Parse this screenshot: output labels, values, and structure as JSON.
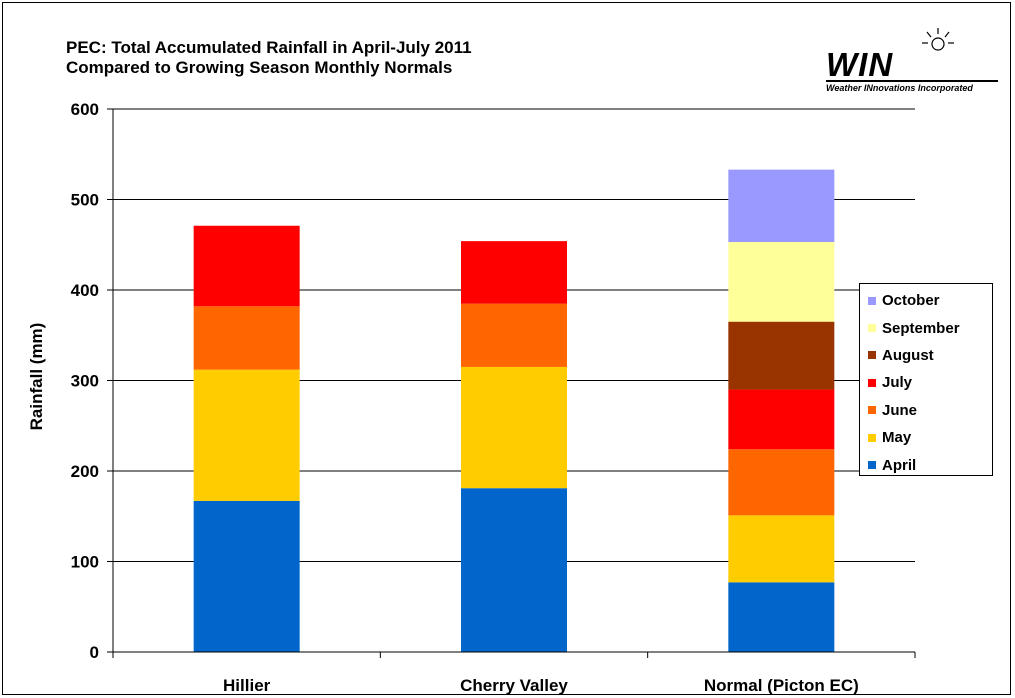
{
  "title_line1": "PEC: Total Accumulated Rainfall in April-July 2011",
  "title_line2": "Compared to Growing Season Monthly Normals",
  "logo": {
    "name": "WIN",
    "subtitle": "Weather INnovations Incorporated"
  },
  "chart_data": {
    "type": "bar",
    "stacked": true,
    "title": "PEC: Total Accumulated Rainfall in April-July 2011 Compared to Growing Season Monthly Normals",
    "xlabel": "",
    "ylabel": "Rainfall (mm)",
    "ylim": [
      0,
      600
    ],
    "yticks": [
      0,
      100,
      200,
      300,
      400,
      500,
      600
    ],
    "grid": true,
    "legend_position": "right",
    "categories": [
      "Hillier",
      "Cherry Valley",
      "Normal (Picton EC)"
    ],
    "series": [
      {
        "name": "April",
        "color": "#0066cc",
        "values": [
          167,
          181,
          77
        ]
      },
      {
        "name": "May",
        "color": "#ffcc00",
        "values": [
          145,
          134,
          74
        ]
      },
      {
        "name": "June",
        "color": "#ff6600",
        "values": [
          70,
          70,
          73
        ]
      },
      {
        "name": "July",
        "color": "#ff0000",
        "values": [
          89,
          69,
          66
        ]
      },
      {
        "name": "August",
        "color": "#993300",
        "values": [
          null,
          null,
          75
        ]
      },
      {
        "name": "September",
        "color": "#ffff99",
        "values": [
          null,
          null,
          88
        ]
      },
      {
        "name": "October",
        "color": "#9999ff",
        "values": [
          null,
          null,
          80
        ]
      }
    ]
  }
}
